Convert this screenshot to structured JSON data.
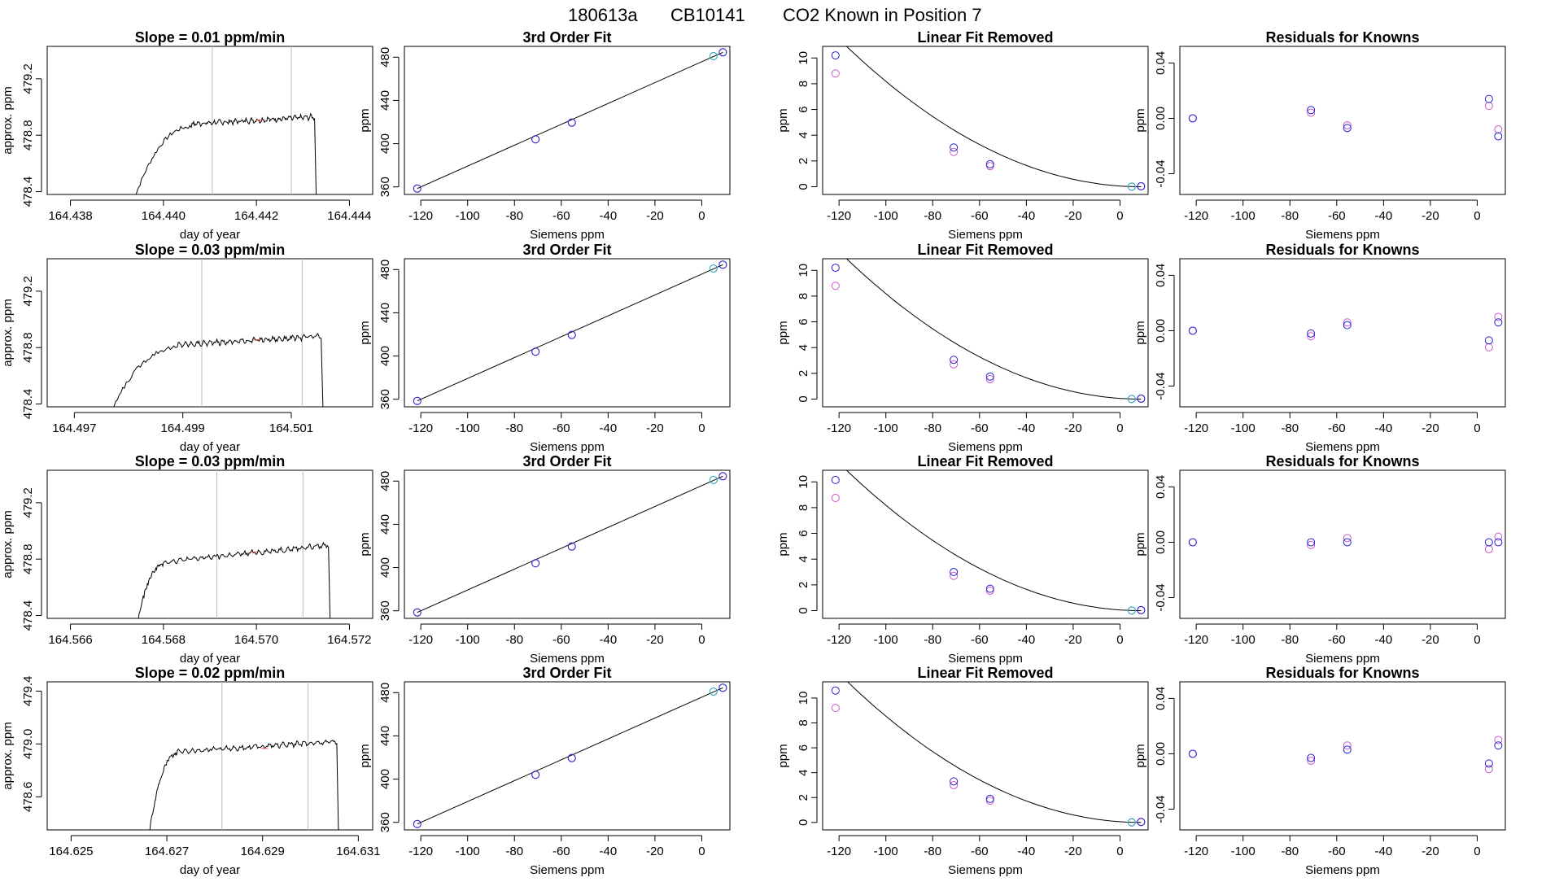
{
  "page_title": {
    "date": "180613a",
    "tank": "CB10141",
    "description": "CO2 Known in Position  7"
  },
  "colors": {
    "trace": "#000000",
    "trace_highlight": "#ff4444",
    "window_line": "#bbbbbb",
    "raw_points": "#cc55cc",
    "fit_points": "#2222cc",
    "zero_point": "#22bbbb"
  },
  "chart_data": [
    {
      "type": "line",
      "panel": "trace",
      "row": 1,
      "title": "Slope =  0.01  ppm/min",
      "xlabel": "day of year",
      "ylabel": "approx. ppm",
      "xlim": [
        164.4375,
        164.4445
      ],
      "ylim": [
        478.38,
        479.43
      ],
      "xticks": [
        "164.438",
        "164.440",
        "164.442",
        "164.444"
      ],
      "yticks": [
        "478.4",
        "478.8",
        "479.2"
      ],
      "x_start": 164.4393,
      "x_end": 164.44325,
      "plateau_start": 164.4406,
      "plateau_ppm": 478.88,
      "end_ppm": 478.93,
      "vlines": [
        164.44105,
        164.44275
      ]
    },
    {
      "type": "scatter",
      "panel": "fit3",
      "row": 1,
      "title": "3rd Order Fit",
      "xlabel": "Siemens ppm",
      "ylabel": "ppm",
      "xlim": [
        -127,
        12
      ],
      "ylim": [
        353,
        490
      ],
      "xticks": [
        "-120",
        "-100",
        "-80",
        "-60",
        "-40",
        "-20",
        "0"
      ],
      "yticks": [
        "360",
        "400",
        "440",
        "480"
      ],
      "curve": {
        "x": [
          -121.5,
          9
        ],
        "y": [
          358.5,
          484.5
        ]
      },
      "raw_points": {
        "x": [
          -121.5,
          -71,
          -55.5,
          5,
          9
        ],
        "y": [
          358.5,
          404,
          419.5,
          481,
          484.5
        ]
      },
      "fit_points": {
        "x": [
          -121.5,
          -71,
          -55.5,
          5,
          9
        ],
        "y": [
          358.5,
          404,
          419.5,
          481,
          484.5
        ]
      }
    },
    {
      "type": "scatter",
      "panel": "linfit",
      "row": 1,
      "title": "Linear Fit Removed",
      "xlabel": "Siemens ppm",
      "ylabel": "ppm",
      "xlim": [
        -127,
        12
      ],
      "ylim": [
        -0.6,
        10.9
      ],
      "xticks": [
        "-120",
        "-100",
        "-80",
        "-60",
        "-40",
        "-20",
        "0"
      ],
      "yticks": [
        "0",
        "2",
        "4",
        "6",
        "8",
        "10"
      ],
      "curve_a": 0.000689,
      "curve_from": -121.5,
      "curve_to": 9,
      "raw_points": {
        "x": [
          -121.5,
          -71,
          -55.5,
          5,
          9
        ],
        "y": [
          8.8,
          2.7,
          1.6,
          0.0,
          0.05
        ]
      },
      "fit_points": {
        "x": [
          -121.5,
          -71,
          -55.5,
          5,
          9
        ],
        "y": [
          10.2,
          3.05,
          1.75,
          0.02,
          0.03
        ]
      }
    },
    {
      "type": "scatter",
      "panel": "resid",
      "row": 1,
      "title": "Residuals for Knowns",
      "xlabel": "Siemens ppm",
      "ylabel": "ppm",
      "xlim": [
        -127,
        12
      ],
      "ylim": [
        -0.055,
        0.052
      ],
      "xticks": [
        "-120",
        "-100",
        "-80",
        "-60",
        "-40",
        "-20",
        "0"
      ],
      "yticks": [
        "-0.04",
        "0.00",
        "0.04"
      ],
      "raw_points": {
        "x": [
          -121.5,
          -71,
          -55.5,
          5,
          9
        ],
        "y": [
          0.0,
          0.004,
          -0.005,
          0.009,
          -0.008
        ]
      },
      "fit_points": {
        "x": [
          -121.5,
          -71,
          -55.5,
          5,
          9
        ],
        "y": [
          0.0,
          0.006,
          -0.007,
          0.014,
          -0.013
        ]
      }
    },
    {
      "type": "line",
      "panel": "trace",
      "row": 2,
      "title": "Slope =  0.03  ppm/min",
      "xlabel": "day of year",
      "ylabel": "approx. ppm",
      "xlim": [
        164.4965,
        164.5025
      ],
      "ylim": [
        478.38,
        479.43
      ],
      "xticks": [
        "164.497",
        "164.499",
        "164.501"
      ],
      "yticks": [
        "478.4",
        "478.8",
        "479.2"
      ],
      "x_start": 164.4976,
      "x_end": 164.50155,
      "plateau_start": 164.4989,
      "plateau_ppm": 478.82,
      "end_ppm": 478.88,
      "vlines": [
        164.49935,
        164.5012
      ]
    },
    {
      "type": "scatter",
      "panel": "fit3",
      "row": 2,
      "title": "3rd Order Fit",
      "xlabel": "Siemens ppm",
      "ylabel": "ppm",
      "xlim": [
        -127,
        12
      ],
      "ylim": [
        353,
        490
      ],
      "xticks": [
        "-120",
        "-100",
        "-80",
        "-60",
        "-40",
        "-20",
        "0"
      ],
      "yticks": [
        "360",
        "400",
        "440",
        "480"
      ],
      "curve": {
        "x": [
          -121.5,
          9
        ],
        "y": [
          358.5,
          484.5
        ]
      },
      "raw_points": {
        "x": [
          -121.5,
          -71,
          -55.5,
          5,
          9
        ],
        "y": [
          358.5,
          404,
          419.5,
          481,
          484.5
        ]
      },
      "fit_points": {
        "x": [
          -121.5,
          -71,
          -55.5,
          5,
          9
        ],
        "y": [
          358.5,
          404,
          419.5,
          481,
          484.5
        ]
      }
    },
    {
      "type": "scatter",
      "panel": "linfit",
      "row": 2,
      "title": "Linear Fit Removed",
      "xlabel": "Siemens ppm",
      "ylabel": "ppm",
      "xlim": [
        -127,
        12
      ],
      "ylim": [
        -0.6,
        10.9
      ],
      "xticks": [
        "-120",
        "-100",
        "-80",
        "-60",
        "-40",
        "-20",
        "0"
      ],
      "yticks": [
        "0",
        "2",
        "4",
        "6",
        "8",
        "10"
      ],
      "curve_a": 0.000689,
      "curve_from": -121.5,
      "curve_to": 9,
      "raw_points": {
        "x": [
          -121.5,
          -71,
          -55.5,
          5,
          9
        ],
        "y": [
          8.8,
          2.7,
          1.55,
          0.0,
          0.05
        ]
      },
      "fit_points": {
        "x": [
          -121.5,
          -71,
          -55.5,
          5,
          9
        ],
        "y": [
          10.2,
          3.05,
          1.75,
          0.02,
          0.03
        ]
      }
    },
    {
      "type": "scatter",
      "panel": "resid",
      "row": 2,
      "title": "Residuals for Knowns",
      "xlabel": "Siemens ppm",
      "ylabel": "ppm",
      "xlim": [
        -127,
        12
      ],
      "ylim": [
        -0.055,
        0.052
      ],
      "xticks": [
        "-120",
        "-100",
        "-80",
        "-60",
        "-40",
        "-20",
        "0"
      ],
      "yticks": [
        "-0.04",
        "0.00",
        "0.04"
      ],
      "raw_points": {
        "x": [
          -121.5,
          -71,
          -55.5,
          5,
          9
        ],
        "y": [
          0.0,
          -0.004,
          0.006,
          -0.012,
          0.01
        ]
      },
      "fit_points": {
        "x": [
          -121.5,
          -71,
          -55.5,
          5,
          9
        ],
        "y": [
          0.0,
          -0.002,
          0.004,
          -0.007,
          0.006
        ]
      }
    },
    {
      "type": "line",
      "panel": "trace",
      "row": 3,
      "title": "Slope =  0.03  ppm/min",
      "xlabel": "day of year",
      "ylabel": "approx. ppm",
      "xlim": [
        164.5655,
        164.5725
      ],
      "ylim": [
        478.38,
        479.43
      ],
      "xticks": [
        "164.566",
        "164.568",
        "164.570",
        "164.572"
      ],
      "yticks": [
        "478.4",
        "478.8",
        "479.2"
      ],
      "x_start": 164.5674,
      "x_end": 164.57155,
      "plateau_start": 164.568,
      "plateau_ppm": 478.78,
      "end_ppm": 478.9,
      "vlines": [
        164.56915,
        164.571
      ]
    },
    {
      "type": "scatter",
      "panel": "fit3",
      "row": 3,
      "title": "3rd Order Fit",
      "xlabel": "Siemens ppm",
      "ylabel": "ppm",
      "xlim": [
        -127,
        12
      ],
      "ylim": [
        353,
        490
      ],
      "xticks": [
        "-120",
        "-100",
        "-80",
        "-60",
        "-40",
        "-20",
        "0"
      ],
      "yticks": [
        "360",
        "400",
        "440",
        "480"
      ],
      "curve": {
        "x": [
          -121.5,
          9
        ],
        "y": [
          358.5,
          484.5
        ]
      },
      "raw_points": {
        "x": [
          -121.5,
          -71,
          -55.5,
          5,
          9
        ],
        "y": [
          358.5,
          404,
          419.5,
          481,
          484.5
        ]
      },
      "fit_points": {
        "x": [
          -121.5,
          -71,
          -55.5,
          5,
          9
        ],
        "y": [
          358.5,
          404,
          419.5,
          481,
          484.5
        ]
      }
    },
    {
      "type": "scatter",
      "panel": "linfit",
      "row": 3,
      "title": "Linear Fit Removed",
      "xlabel": "Siemens ppm",
      "ylabel": "ppm",
      "xlim": [
        -127,
        12
      ],
      "ylim": [
        -0.6,
        10.9
      ],
      "xticks": [
        "-120",
        "-100",
        "-80",
        "-60",
        "-40",
        "-20",
        "0"
      ],
      "yticks": [
        "0",
        "2",
        "4",
        "6",
        "8",
        "10"
      ],
      "curve_a": 0.000689,
      "curve_from": -121.5,
      "curve_to": 9,
      "raw_points": {
        "x": [
          -121.5,
          -71,
          -55.5,
          5,
          9
        ],
        "y": [
          8.75,
          2.7,
          1.55,
          0.0,
          0.05
        ]
      },
      "fit_points": {
        "x": [
          -121.5,
          -71,
          -55.5,
          5,
          9
        ],
        "y": [
          10.15,
          3.0,
          1.7,
          0.02,
          0.03
        ]
      }
    },
    {
      "type": "scatter",
      "panel": "resid",
      "row": 3,
      "title": "Residuals for Knowns",
      "xlabel": "Siemens ppm",
      "ylabel": "ppm",
      "xlim": [
        -127,
        12
      ],
      "ylim": [
        -0.055,
        0.052
      ],
      "xticks": [
        "-120",
        "-100",
        "-80",
        "-60",
        "-40",
        "-20",
        "0"
      ],
      "yticks": [
        "-0.04",
        "0.00",
        "0.04"
      ],
      "raw_points": {
        "x": [
          -121.5,
          -71,
          -55.5,
          5,
          9
        ],
        "y": [
          0.0,
          -0.002,
          0.003,
          -0.005,
          0.004
        ]
      },
      "fit_points": {
        "x": [
          -121.5,
          -71,
          -55.5,
          5,
          9
        ],
        "y": [
          0.0,
          0.0,
          0.0,
          0.0,
          0.0
        ]
      }
    },
    {
      "type": "line",
      "panel": "trace",
      "row": 4,
      "title": "Slope =  0.02  ppm/min",
      "xlabel": "day of year",
      "ylabel": "approx. ppm",
      "xlim": [
        164.6245,
        164.6313
      ],
      "ylim": [
        478.35,
        479.47
      ],
      "xticks": [
        "164.625",
        "164.627",
        "164.629",
        "164.631"
      ],
      "yticks": [
        "478.6",
        "479.0",
        "479.4"
      ],
      "x_start": 164.6266,
      "x_end": 164.63055,
      "plateau_start": 164.6272,
      "plateau_ppm": 478.94,
      "end_ppm": 479.02,
      "vlines": [
        164.62815,
        164.62995
      ]
    },
    {
      "type": "scatter",
      "panel": "fit3",
      "row": 4,
      "title": "3rd Order Fit",
      "xlabel": "Siemens ppm",
      "ylabel": "ppm",
      "xlim": [
        -127,
        12
      ],
      "ylim": [
        353,
        490
      ],
      "xticks": [
        "-120",
        "-100",
        "-80",
        "-60",
        "-40",
        "-20",
        "0"
      ],
      "yticks": [
        "360",
        "400",
        "440",
        "480"
      ],
      "curve": {
        "x": [
          -121.5,
          9
        ],
        "y": [
          358.5,
          484.5
        ]
      },
      "raw_points": {
        "x": [
          -121.5,
          -71,
          -55.5,
          5,
          9
        ],
        "y": [
          358.5,
          404,
          419.5,
          481,
          484.5
        ]
      },
      "fit_points": {
        "x": [
          -121.5,
          -71,
          -55.5,
          5,
          9
        ],
        "y": [
          358.5,
          404,
          419.5,
          481,
          484.5
        ]
      }
    },
    {
      "type": "scatter",
      "panel": "linfit",
      "row": 4,
      "title": "Linear Fit Removed",
      "xlabel": "Siemens ppm",
      "ylabel": "ppm",
      "xlim": [
        -127,
        12
      ],
      "ylim": [
        -0.6,
        11.3
      ],
      "xticks": [
        "-120",
        "-100",
        "-80",
        "-60",
        "-40",
        "-20",
        "0"
      ],
      "yticks": [
        "0",
        "2",
        "4",
        "6",
        "8",
        "10"
      ],
      "curve_a": 0.000719,
      "curve_from": -121.5,
      "curve_to": 9,
      "raw_points": {
        "x": [
          -121.5,
          -71,
          -55.5,
          5,
          9
        ],
        "y": [
          9.2,
          3.0,
          1.75,
          0.0,
          0.05
        ]
      },
      "fit_points": {
        "x": [
          -121.5,
          -71,
          -55.5,
          5,
          9
        ],
        "y": [
          10.6,
          3.3,
          1.9,
          0.02,
          0.03
        ]
      }
    },
    {
      "type": "scatter",
      "panel": "resid",
      "row": 4,
      "title": "Residuals for Knowns",
      "xlabel": "Siemens ppm",
      "ylabel": "ppm",
      "xlim": [
        -127,
        12
      ],
      "ylim": [
        -0.055,
        0.052
      ],
      "xticks": [
        "-120",
        "-100",
        "-80",
        "-60",
        "-40",
        "-20",
        "0"
      ],
      "yticks": [
        "-0.04",
        "0.00",
        "0.04"
      ],
      "raw_points": {
        "x": [
          -121.5,
          -71,
          -55.5,
          5,
          9
        ],
        "y": [
          0.0,
          -0.005,
          0.006,
          -0.011,
          0.01
        ]
      },
      "fit_points": {
        "x": [
          -121.5,
          -71,
          -55.5,
          5,
          9
        ],
        "y": [
          0.0,
          -0.003,
          0.003,
          -0.007,
          0.006
        ]
      }
    }
  ]
}
